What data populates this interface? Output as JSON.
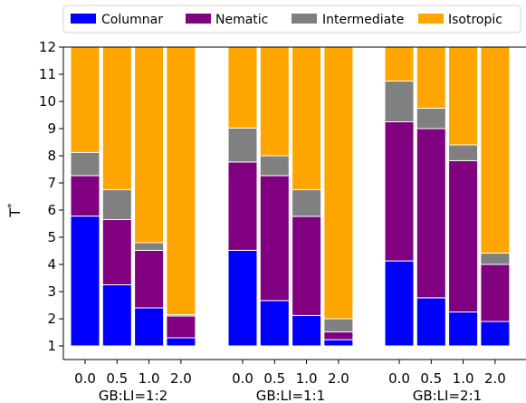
{
  "chart_data": {
    "type": "bar",
    "stacked": true,
    "legend": {
      "placement": "top",
      "entries": [
        {
          "name": "Columnar",
          "color": "#0000ff"
        },
        {
          "name": "Nematic",
          "color": "#800080"
        },
        {
          "name": "Intermediate",
          "color": "#808080"
        },
        {
          "name": "Isotropic",
          "color": "#ffa500"
        }
      ]
    },
    "ylabel_base": "T",
    "ylabel_sup": "*",
    "ylim": [
      0.5,
      12
    ],
    "yticks": [
      "1",
      "2",
      "3",
      "4",
      "5",
      "6",
      "7",
      "8",
      "9",
      "10",
      "11",
      "12"
    ],
    "grid": false,
    "baseline": 1,
    "groups": [
      {
        "label": "GB:LI=1:2",
        "bars": [
          {
            "x": "0.0",
            "columnar": 5.78,
            "nematic": 7.27,
            "intermediate": 8.12,
            "isotropic": 12
          },
          {
            "x": "0.5",
            "columnar": 3.25,
            "nematic": 5.65,
            "intermediate": 6.75,
            "isotropic": 12
          },
          {
            "x": "1.0",
            "columnar": 2.4,
            "nematic": 4.52,
            "intermediate": 4.8,
            "isotropic": 12
          },
          {
            "x": "2.0",
            "columnar": 1.3,
            "nematic": 2.1,
            "intermediate": 2.15,
            "isotropic": 12
          }
        ]
      },
      {
        "label": "GB:LI=1:1",
        "bars": [
          {
            "x": "0.0",
            "columnar": 4.52,
            "nematic": 7.77,
            "intermediate": 9.02,
            "isotropic": 12
          },
          {
            "x": "0.5",
            "columnar": 2.67,
            "nematic": 7.27,
            "intermediate": 8.0,
            "isotropic": 12
          },
          {
            "x": "1.0",
            "columnar": 2.12,
            "nematic": 5.77,
            "intermediate": 6.75,
            "isotropic": 12
          },
          {
            "x": "2.0",
            "columnar": 1.23,
            "nematic": 1.52,
            "intermediate": 2.0,
            "isotropic": 12
          }
        ]
      },
      {
        "label": "GB:LI=2:1",
        "bars": [
          {
            "x": "0.0",
            "columnar": 4.13,
            "nematic": 9.25,
            "intermediate": 10.75,
            "isotropic": 12
          },
          {
            "x": "0.5",
            "columnar": 2.77,
            "nematic": 9.0,
            "intermediate": 9.75,
            "isotropic": 12
          },
          {
            "x": "1.0",
            "columnar": 2.25,
            "nematic": 7.82,
            "intermediate": 8.4,
            "isotropic": 12
          },
          {
            "x": "2.0",
            "columnar": 1.9,
            "nematic": 4.0,
            "intermediate": 4.42,
            "isotropic": 12
          }
        ]
      }
    ]
  }
}
